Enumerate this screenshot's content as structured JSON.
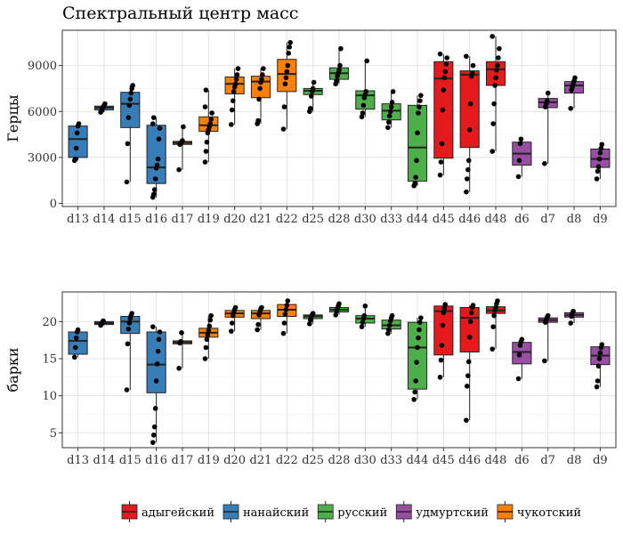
{
  "chart_data": [
    {
      "type": "box",
      "title": "Спектральный центр масс",
      "ylabel": "Герцы",
      "xlabel": "",
      "ylim": [
        -200,
        11300
      ],
      "yticks": [
        0,
        3000,
        6000,
        9000
      ],
      "yticklabels": [
        "0",
        "3000",
        "6000",
        "9000"
      ],
      "grid": true,
      "categories": [
        "d13",
        "d14",
        "d15",
        "d16",
        "d17",
        "d19",
        "d20",
        "d21",
        "d22",
        "d25",
        "d28",
        "d30",
        "d33",
        "d44",
        "d45",
        "d46",
        "d48",
        "d6",
        "d7",
        "d8",
        "d9"
      ],
      "groups": [
        "нанайский",
        "нанайский",
        "нанайский",
        "нанайский",
        "чукотский",
        "чукотский",
        "чукотский",
        "чукотский",
        "чукотский",
        "русский",
        "русский",
        "русский",
        "русский",
        "русский",
        "адыгейский",
        "адыгейский",
        "адыгейский",
        "удмуртский",
        "удмуртский",
        "удмуртский",
        "удмуртский"
      ],
      "boxes": [
        {
          "q1": 3000,
          "median": 4200,
          "q3": 5050,
          "wlow": 2800,
          "whigh": 5200
        },
        {
          "q1": 6100,
          "median": 6250,
          "q3": 6350,
          "wlow": 5950,
          "whigh": 6500
        },
        {
          "q1": 4950,
          "median": 6500,
          "q3": 7250,
          "wlow": 1400,
          "whigh": 7700
        },
        {
          "q1": 1300,
          "median": 2350,
          "q3": 5100,
          "wlow": 400,
          "whigh": 5600
        },
        {
          "q1": 3850,
          "median": 3950,
          "q3": 4050,
          "wlow": 2200,
          "whigh": 5000
        },
        {
          "q1": 4700,
          "median": 5100,
          "q3": 5650,
          "wlow": 2700,
          "whigh": 7400
        },
        {
          "q1": 7150,
          "median": 7800,
          "q3": 8250,
          "wlow": 5150,
          "whigh": 8800
        },
        {
          "q1": 6900,
          "median": 7950,
          "q3": 8300,
          "wlow": 5200,
          "whigh": 8800
        },
        {
          "q1": 7300,
          "median": 8450,
          "q3": 9400,
          "wlow": 4850,
          "whigh": 10500
        },
        {
          "q1": 7100,
          "median": 7350,
          "q3": 7500,
          "wlow": 6000,
          "whigh": 7900
        },
        {
          "q1": 8100,
          "median": 8500,
          "q3": 8850,
          "wlow": 7800,
          "whigh": 10100
        },
        {
          "q1": 6150,
          "median": 7050,
          "q3": 7350,
          "wlow": 5650,
          "whigh": 9300
        },
        {
          "q1": 5450,
          "median": 6050,
          "q3": 6500,
          "wlow": 4950,
          "whigh": 7300
        },
        {
          "q1": 1450,
          "median": 3650,
          "q3": 6400,
          "wlow": 1150,
          "whigh": 7050
        },
        {
          "q1": 2950,
          "median": 8150,
          "q3": 9250,
          "wlow": 1850,
          "whigh": 9750
        },
        {
          "q1": 3650,
          "median": 8400,
          "q3": 8650,
          "wlow": 750,
          "whigh": 9600
        },
        {
          "q1": 7700,
          "median": 8750,
          "q3": 9250,
          "wlow": 3400,
          "whigh": 10900
        },
        {
          "q1": 2500,
          "median": 3250,
          "q3": 4000,
          "wlow": 1750,
          "whigh": 4200
        },
        {
          "q1": 6250,
          "median": 6600,
          "q3": 6850,
          "wlow": 2600,
          "whigh": 7200
        },
        {
          "q1": 7200,
          "median": 7700,
          "q3": 7950,
          "wlow": 6200,
          "whigh": 8200
        },
        {
          "q1": 2350,
          "median": 2900,
          "q3": 3550,
          "wlow": 1600,
          "whigh": 3850
        }
      ],
      "points": [
        [
          2800,
          2900,
          3600,
          4600,
          5050,
          5200
        ],
        [
          5950,
          6050,
          6200,
          6300,
          6400,
          6500
        ],
        [
          1400,
          3900,
          5600,
          6400,
          6800,
          7200,
          7500,
          7700
        ],
        [
          400,
          600,
          900,
          1600,
          2300,
          2500,
          2900,
          4200,
          4900,
          5200,
          5600
        ],
        [
          2200,
          3850,
          3900,
          4000,
          4100,
          5000
        ],
        [
          2700,
          3400,
          4000,
          4600,
          4800,
          5000,
          5200,
          5500,
          5900,
          6300,
          7400
        ],
        [
          5150,
          6100,
          6700,
          7300,
          7600,
          7800,
          8100,
          8400,
          8800
        ],
        [
          5200,
          5400,
          6800,
          7500,
          7900,
          8100,
          8400,
          8800
        ],
        [
          4850,
          6300,
          7800,
          8200,
          8600,
          9000,
          9800,
          10200,
          10500
        ],
        [
          6000,
          6200,
          7000,
          7300,
          7500,
          7900
        ],
        [
          7800,
          8000,
          8300,
          8500,
          8700,
          9000,
          10100
        ],
        [
          5650,
          5900,
          6400,
          6900,
          7100,
          7300,
          9300
        ],
        [
          4950,
          5300,
          5700,
          6000,
          6300,
          6600,
          7300
        ],
        [
          1150,
          1300,
          1700,
          2800,
          4600,
          5900,
          6300,
          6700,
          7050
        ],
        [
          1850,
          2700,
          3900,
          6100,
          7400,
          8200,
          8600,
          9100,
          9500,
          9750
        ],
        [
          750,
          1600,
          2200,
          2800,
          4800,
          6500,
          8300,
          8500,
          9000,
          9600
        ],
        [
          3400,
          5200,
          6500,
          7700,
          8200,
          8700,
          9000,
          9500,
          10100,
          10900
        ],
        [
          1750,
          2800,
          3900,
          4200
        ],
        [
          2600,
          6300,
          6500,
          6700,
          7200
        ],
        [
          6200,
          7400,
          7600,
          7800,
          8000,
          8200
        ],
        [
          1600,
          2100,
          2400,
          2900,
          3300,
          3600,
          3850
        ]
      ]
    },
    {
      "type": "box",
      "title": "",
      "ylabel": "барки",
      "xlabel": "",
      "ylim": [
        3,
        24
      ],
      "yticks": [
        5,
        10,
        15,
        20
      ],
      "yticklabels": [
        "5",
        "10",
        "15",
        "20"
      ],
      "grid": true,
      "categories": [
        "d13",
        "d14",
        "d15",
        "d16",
        "d17",
        "d19",
        "d20",
        "d21",
        "d22",
        "d25",
        "d28",
        "d30",
        "d33",
        "d44",
        "d45",
        "d46",
        "d48",
        "d6",
        "d7",
        "d8",
        "d9"
      ],
      "groups": [
        "нанайский",
        "нанайский",
        "нанайский",
        "нанайский",
        "чукотский",
        "чукотский",
        "чукотский",
        "чукотский",
        "чукотский",
        "русский",
        "русский",
        "русский",
        "русский",
        "русский",
        "адыгейский",
        "адыгейский",
        "адыгейский",
        "удмуртский",
        "удмуртский",
        "удмуртский",
        "удмуртский"
      ],
      "boxes": [
        {
          "q1": 15.6,
          "median": 17.4,
          "q3": 18.6,
          "wlow": 15.2,
          "whigh": 18.9
        },
        {
          "q1": 19.6,
          "median": 19.8,
          "q3": 20.0,
          "wlow": 19.5,
          "whigh": 20.1
        },
        {
          "q1": 18.4,
          "median": 20.0,
          "q3": 20.7,
          "wlow": 10.8,
          "whigh": 21.1
        },
        {
          "q1": 10.4,
          "median": 14.2,
          "q3": 18.6,
          "wlow": 3.7,
          "whigh": 19.3
        },
        {
          "q1": 17.0,
          "median": 17.2,
          "q3": 17.4,
          "wlow": 13.7,
          "whigh": 18.5
        },
        {
          "q1": 17.9,
          "median": 18.5,
          "q3": 19.1,
          "wlow": 15.0,
          "whigh": 20.8
        },
        {
          "q1": 20.6,
          "median": 21.1,
          "q3": 21.5,
          "wlow": 18.7,
          "whigh": 21.9
        },
        {
          "q1": 20.4,
          "median": 21.1,
          "q3": 21.5,
          "wlow": 18.9,
          "whigh": 21.9
        },
        {
          "q1": 20.7,
          "median": 21.6,
          "q3": 22.3,
          "wlow": 18.4,
          "whigh": 22.8
        },
        {
          "q1": 20.4,
          "median": 20.7,
          "q3": 20.9,
          "wlow": 19.7,
          "whigh": 21.1
        },
        {
          "q1": 21.3,
          "median": 21.6,
          "q3": 21.9,
          "wlow": 20.9,
          "whigh": 22.4
        },
        {
          "q1": 19.8,
          "median": 20.4,
          "q3": 20.8,
          "wlow": 19.3,
          "whigh": 22.1
        },
        {
          "q1": 19.0,
          "median": 19.5,
          "q3": 20.2,
          "wlow": 18.4,
          "whigh": 20.8
        },
        {
          "q1": 10.9,
          "median": 16.5,
          "q3": 19.9,
          "wlow": 9.5,
          "whigh": 20.5
        },
        {
          "q1": 15.5,
          "median": 21.4,
          "q3": 22.1,
          "wlow": 12.5,
          "whigh": 22.3
        },
        {
          "q1": 15.9,
          "median": 20.5,
          "q3": 21.9,
          "wlow": 6.7,
          "whigh": 22.2
        },
        {
          "q1": 21.1,
          "median": 21.5,
          "q3": 22.0,
          "wlow": 16.3,
          "whigh": 22.8
        },
        {
          "q1": 14.3,
          "median": 15.9,
          "q3": 17.2,
          "wlow": 12.3,
          "whigh": 17.6
        },
        {
          "q1": 19.9,
          "median": 20.2,
          "q3": 20.5,
          "wlow": 14.7,
          "whigh": 20.8
        },
        {
          "q1": 20.6,
          "median": 20.9,
          "q3": 21.2,
          "wlow": 19.8,
          "whigh": 21.4
        },
        {
          "q1": 14.2,
          "median": 15.4,
          "q3": 16.6,
          "wlow": 11.2,
          "whigh": 16.9
        }
      ],
      "points": [
        [
          15.2,
          16.5,
          17.8,
          18.6,
          18.9
        ],
        [
          19.5,
          19.7,
          19.9,
          20.1
        ],
        [
          10.8,
          17.0,
          19.0,
          19.8,
          20.4,
          20.8,
          21.1
        ],
        [
          3.7,
          4.7,
          5.8,
          8.3,
          12.0,
          14.3,
          16.0,
          17.6,
          18.6,
          19.3
        ],
        [
          13.7,
          17.1,
          17.3,
          18.5
        ],
        [
          15.0,
          16.5,
          17.6,
          18.2,
          18.8,
          19.4,
          20.2,
          20.8
        ],
        [
          18.7,
          19.8,
          20.8,
          21.2,
          21.6,
          21.9
        ],
        [
          18.9,
          19.6,
          20.9,
          21.3,
          21.7,
          21.9
        ],
        [
          18.4,
          19.8,
          21.0,
          21.6,
          22.2,
          22.8
        ],
        [
          19.7,
          20.2,
          20.6,
          20.9,
          21.1
        ],
        [
          20.9,
          21.4,
          21.7,
          22.1,
          22.4
        ],
        [
          19.3,
          19.9,
          20.4,
          20.8,
          22.1
        ],
        [
          18.4,
          18.9,
          19.5,
          20.1,
          20.5,
          20.8
        ],
        [
          9.5,
          10.5,
          12.0,
          14.5,
          16.5,
          17.8,
          18.9,
          19.9,
          20.5
        ],
        [
          12.5,
          14.8,
          16.8,
          19.5,
          21.2,
          21.8,
          22.3
        ],
        [
          6.7,
          11.3,
          12.7,
          14.6,
          17.9,
          20.0,
          21.2,
          21.9,
          22.2
        ],
        [
          16.3,
          19.3,
          20.8,
          21.5,
          21.9,
          22.4,
          22.8
        ],
        [
          12.3,
          15.5,
          16.8,
          17.3,
          17.6
        ],
        [
          14.7,
          19.9,
          20.3,
          20.6,
          20.8
        ],
        [
          19.8,
          20.7,
          21.1,
          21.4
        ],
        [
          11.2,
          12.0,
          14.0,
          15.0,
          15.8,
          16.5,
          16.9
        ]
      ]
    }
  ],
  "legend": {
    "items": [
      {
        "label": "адыгейский",
        "color": "#E41A1C"
      },
      {
        "label": "нанайский",
        "color": "#377EB8"
      },
      {
        "label": "русский",
        "color": "#4DAF4A"
      },
      {
        "label": "удмуртский",
        "color": "#984EA3"
      },
      {
        "label": "чукотский",
        "color": "#FF7F00"
      }
    ],
    "position": "bottom"
  },
  "colors": {
    "адыгейский": "#E41A1C",
    "нанайский": "#377EB8",
    "русский": "#4DAF4A",
    "удмуртский": "#984EA3",
    "чукотский": "#FF7F00"
  }
}
